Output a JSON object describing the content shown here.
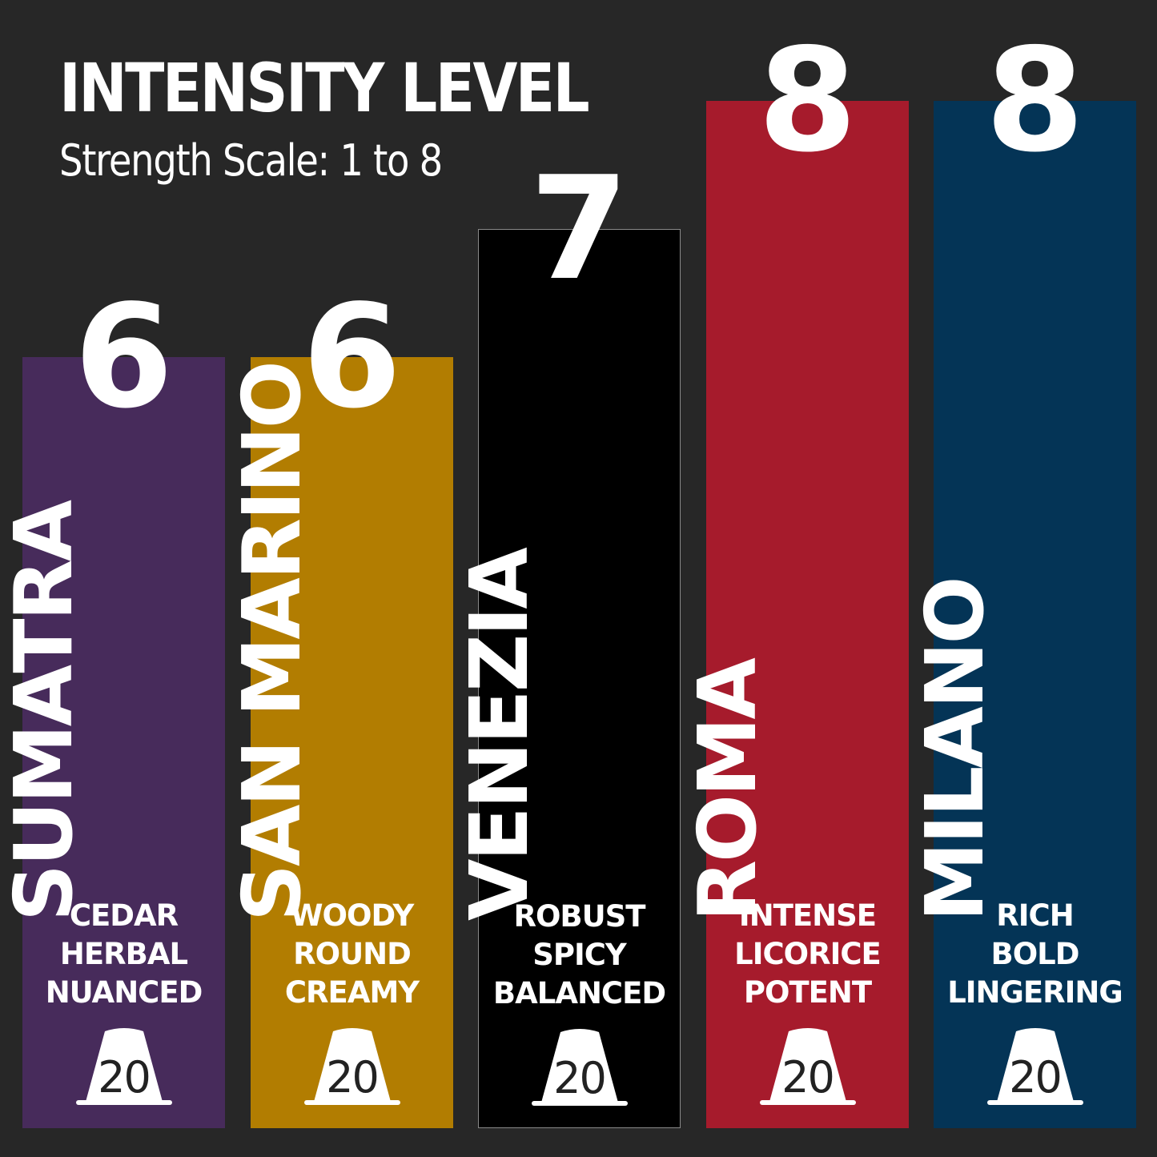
{
  "header": {
    "title": "INTENSITY LEVEL",
    "subtitle": "Strength Scale: 1 to 8"
  },
  "chart_data": {
    "type": "bar",
    "title": "INTENSITY LEVEL",
    "subtitle": "Strength Scale: 1 to 8",
    "ylim": [
      1,
      8
    ],
    "categories": [
      "SUMATRA",
      "SAN MARINO",
      "VENEZIA",
      "ROMA",
      "MILANO"
    ],
    "values": [
      6,
      6,
      7,
      8,
      8
    ],
    "bars": [
      {
        "name": "SUMATRA",
        "value": 6,
        "notes": [
          "CEDAR",
          "HERBAL",
          "NUANCED"
        ],
        "count": "20",
        "color": "#472b5b"
      },
      {
        "name": "SAN MARINO",
        "value": 6,
        "notes": [
          "WOODY",
          "ROUND",
          "CREAMY"
        ],
        "count": "20",
        "color": "#b27d01"
      },
      {
        "name": "VENEZIA",
        "value": 7,
        "notes": [
          "ROBUST",
          "SPICY",
          "BALANCED"
        ],
        "count": "20",
        "color": "#000000"
      },
      {
        "name": "ROMA",
        "value": 8,
        "notes": [
          "INTENSE",
          "LICORICE",
          "POTENT"
        ],
        "count": "20",
        "color": "#a61b2c"
      },
      {
        "name": "MILANO",
        "value": 8,
        "notes": [
          "RICH",
          "BOLD",
          "LINGERING"
        ],
        "count": "20",
        "color": "#043456"
      }
    ],
    "grid": false,
    "legend": "none"
  }
}
